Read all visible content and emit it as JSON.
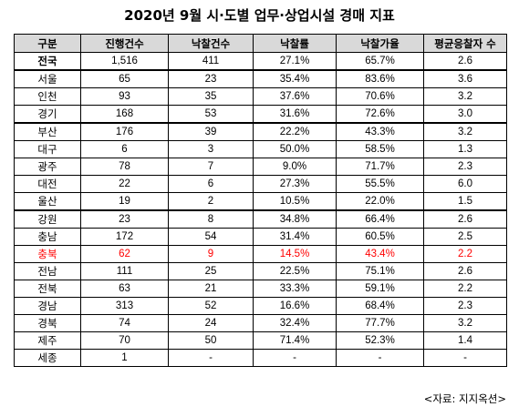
{
  "title": "2020년 9월 시·도별 업무·상업시설 경매 지표",
  "table": {
    "headers": [
      "구분",
      "진행건수",
      "낙찰건수",
      "낙찰률",
      "낙찰가율",
      "평균응찰자 수"
    ],
    "highlight_color": "#ff0000",
    "header_bg": "#d9d9d9",
    "rows": [
      {
        "region": "전국",
        "cells": [
          "1,516",
          "411",
          "27.1%",
          "65.7%",
          "2.6"
        ]
      },
      {
        "region": "서울",
        "cells": [
          "65",
          "23",
          "35.4%",
          "83.6%",
          "3.6"
        ]
      },
      {
        "region": "인천",
        "cells": [
          "93",
          "35",
          "37.6%",
          "70.6%",
          "3.2"
        ]
      },
      {
        "region": "경기",
        "cells": [
          "168",
          "53",
          "31.6%",
          "72.6%",
          "3.0"
        ]
      },
      {
        "region": "부산",
        "cells": [
          "176",
          "39",
          "22.2%",
          "43.3%",
          "3.2"
        ]
      },
      {
        "region": "대구",
        "cells": [
          "6",
          "3",
          "50.0%",
          "58.5%",
          "1.3"
        ]
      },
      {
        "region": "광주",
        "cells": [
          "78",
          "7",
          "9.0%",
          "71.7%",
          "2.3"
        ]
      },
      {
        "region": "대전",
        "cells": [
          "22",
          "6",
          "27.3%",
          "55.5%",
          "6.0"
        ]
      },
      {
        "region": "울산",
        "cells": [
          "19",
          "2",
          "10.5%",
          "22.0%",
          "1.5"
        ]
      },
      {
        "region": "강원",
        "cells": [
          "23",
          "8",
          "34.8%",
          "66.4%",
          "2.6"
        ]
      },
      {
        "region": "충남",
        "cells": [
          "172",
          "54",
          "31.4%",
          "60.5%",
          "2.5"
        ]
      },
      {
        "region": "충북",
        "cells": [
          "62",
          "9",
          "14.5%",
          "43.4%",
          "2.2"
        ]
      },
      {
        "region": "전남",
        "cells": [
          "111",
          "25",
          "22.5%",
          "75.1%",
          "2.6"
        ]
      },
      {
        "region": "전북",
        "cells": [
          "63",
          "21",
          "33.3%",
          "59.1%",
          "2.2"
        ]
      },
      {
        "region": "경남",
        "cells": [
          "313",
          "52",
          "16.6%",
          "68.4%",
          "2.3"
        ]
      },
      {
        "region": "경북",
        "cells": [
          "74",
          "24",
          "32.4%",
          "77.7%",
          "3.2"
        ]
      },
      {
        "region": "제주",
        "cells": [
          "70",
          "50",
          "71.4%",
          "52.3%",
          "1.4"
        ]
      },
      {
        "region": "세종",
        "cells": [
          "1",
          "-",
          "-",
          "-",
          "-"
        ]
      }
    ]
  },
  "source": "<자료: 지지옥션>"
}
